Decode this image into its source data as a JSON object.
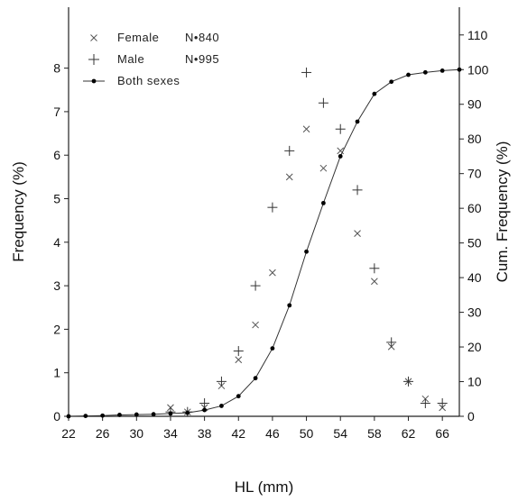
{
  "chart_data": {
    "type": "scatter",
    "xlabel": "HL (mm)",
    "ylabel": "Frequency (%)",
    "y2label": "Cum. Frequency (%)",
    "xticks": [
      22,
      26,
      30,
      34,
      38,
      42,
      46,
      50,
      54,
      58,
      62,
      66
    ],
    "yticks": [
      0,
      1,
      2,
      3,
      4,
      5,
      6,
      7,
      8
    ],
    "y2ticks": [
      0,
      10,
      20,
      30,
      40,
      50,
      60,
      70,
      80,
      90,
      100,
      110
    ],
    "xlim": [
      22,
      68
    ],
    "ylim": [
      0,
      9.4
    ],
    "y2lim": [
      0,
      118
    ],
    "legend_position": "top-left",
    "series": [
      {
        "name": "Female",
        "count_label": "N•840",
        "marker": "x",
        "axis": "left",
        "x": [
          34,
          36,
          38,
          40,
          42,
          44,
          46,
          48,
          50,
          52,
          54,
          56,
          58,
          60,
          62,
          64,
          66
        ],
        "values": [
          0.2,
          0.1,
          0.2,
          0.7,
          1.3,
          2.1,
          3.3,
          5.5,
          6.6,
          5.7,
          6.1,
          4.2,
          3.1,
          1.6,
          0.8,
          0.4,
          0.2
        ]
      },
      {
        "name": "Male",
        "count_label": "N•995",
        "marker": "+",
        "axis": "left",
        "x": [
          34,
          36,
          38,
          40,
          42,
          44,
          46,
          48,
          50,
          52,
          54,
          56,
          58,
          60,
          62,
          64,
          66
        ],
        "values": [
          0.1,
          0.1,
          0.3,
          0.8,
          1.5,
          3.0,
          4.8,
          6.1,
          7.9,
          7.2,
          6.6,
          5.2,
          3.4,
          1.7,
          0.8,
          0.3,
          0.3
        ]
      },
      {
        "name": "Both sexes",
        "count_label": "",
        "marker": "line-dot",
        "axis": "right",
        "x": [
          22,
          24,
          26,
          28,
          30,
          32,
          34,
          36,
          38,
          40,
          42,
          44,
          46,
          48,
          50,
          52,
          54,
          56,
          58,
          60,
          62,
          64,
          66,
          68
        ],
        "values": [
          0,
          0.1,
          0.2,
          0.4,
          0.5,
          0.6,
          0.8,
          1.0,
          1.8,
          3.0,
          5.8,
          11.0,
          19.6,
          32.0,
          47.5,
          61.5,
          75.0,
          85.0,
          93.0,
          96.5,
          98.5,
          99.2,
          99.7,
          100
        ]
      }
    ]
  }
}
